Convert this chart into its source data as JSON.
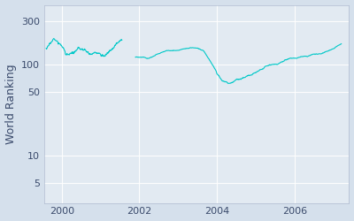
{
  "title": "",
  "ylabel": "World Ranking",
  "xlabel": "",
  "line_color": "#00c8c8",
  "bg_color": "#e2eaf2",
  "fig_color": "#d5e0ec",
  "line_width": 0.8,
  "yticks": [
    5,
    10,
    50,
    100,
    300
  ],
  "xticks": [
    2000,
    2002,
    2004,
    2006
  ],
  "xmin": 1999.55,
  "xmax": 2007.4,
  "ymin": 3.0,
  "ymax": 450,
  "seg1_x": [
    1999.6,
    1999.65,
    1999.72,
    1999.8,
    1999.9,
    2000.0,
    2000.1,
    2000.2,
    2000.35,
    2000.5,
    2000.65,
    2000.8,
    2001.0,
    2001.15,
    2001.3,
    2001.45,
    2001.55
  ],
  "seg1_y": [
    150,
    155,
    168,
    195,
    175,
    160,
    140,
    130,
    135,
    140,
    130,
    128,
    125,
    130,
    148,
    175,
    185
  ],
  "seg2_x": [
    2001.9,
    2002.0,
    2002.2,
    2002.5,
    2002.7,
    2003.0,
    2003.3,
    2003.5,
    2003.65,
    2003.75,
    2003.85,
    2004.0,
    2004.1,
    2004.2,
    2004.35,
    2004.5,
    2004.7,
    2005.0,
    2005.3,
    2005.6,
    2005.9,
    2006.2,
    2006.5,
    2006.7,
    2007.0,
    2007.2
  ],
  "seg2_y": [
    120,
    122,
    120,
    138,
    148,
    152,
    158,
    158,
    145,
    125,
    108,
    82,
    72,
    68,
    65,
    68,
    72,
    80,
    92,
    100,
    112,
    120,
    128,
    132,
    148,
    168
  ],
  "noise_scale1": 5,
  "noise_scale2": 4,
  "ylabel_fontsize": 9,
  "tick_labelsize": 8,
  "grid_color": "#ffffff",
  "grid_alpha": 0.9,
  "grid_lw": 0.8,
  "spine_color": "#b0bcd0",
  "tick_color": "#3a4a6b",
  "label_color": "#3a4a6b"
}
